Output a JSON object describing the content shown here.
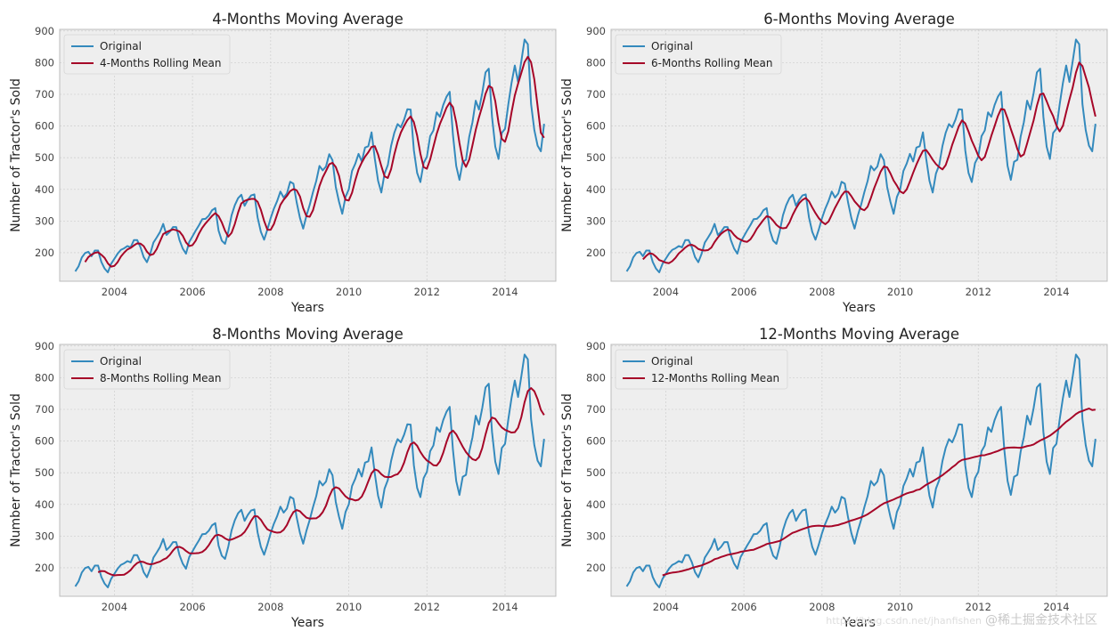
{
  "figure": {
    "background": "#ffffff",
    "axes_background": "#eeeeee",
    "grid_color": "#d2d2d2",
    "colors": {
      "original": "#348abd",
      "rolling": "#a60628"
    }
  },
  "watermark": {
    "url": "https://blog.csdn.net/jhanfishen",
    "text": "@稀土掘金技术社区"
  },
  "chart_data": [
    {
      "type": "line",
      "title": "4-Months Moving Average",
      "xlabel": "Years",
      "ylabel": "Number of Tractor's Sold",
      "xticks": [
        "2004",
        "2006",
        "2008",
        "2010",
        "2012",
        "2014"
      ],
      "yticks": [
        200,
        300,
        400,
        500,
        600,
        700,
        800,
        900
      ],
      "xlim": [
        2002.6,
        2015.3
      ],
      "ylim": [
        110,
        905
      ],
      "grid": true,
      "legend": "top-left",
      "window": 4,
      "series": [
        {
          "name": "Original",
          "role": "original"
        },
        {
          "name": "4-Months Rolling Mean",
          "role": "rolling"
        }
      ]
    },
    {
      "type": "line",
      "title": "6-Months Moving Average",
      "xlabel": "Years",
      "ylabel": "Number of Tractor's Sold",
      "xticks": [
        "2004",
        "2006",
        "2008",
        "2010",
        "2012",
        "2014"
      ],
      "yticks": [
        200,
        300,
        400,
        500,
        600,
        700,
        800,
        900
      ],
      "xlim": [
        2002.6,
        2015.3
      ],
      "ylim": [
        110,
        905
      ],
      "grid": true,
      "legend": "top-left",
      "window": 6,
      "series": [
        {
          "name": "Original",
          "role": "original"
        },
        {
          "name": "6-Months Rolling Mean",
          "role": "rolling"
        }
      ]
    },
    {
      "type": "line",
      "title": "8-Months Moving Average",
      "xlabel": "Years",
      "ylabel": "Number of Tractor's Sold",
      "xticks": [
        "2004",
        "2006",
        "2008",
        "2010",
        "2012",
        "2014"
      ],
      "yticks": [
        200,
        300,
        400,
        500,
        600,
        700,
        800,
        900
      ],
      "xlim": [
        2002.6,
        2015.3
      ],
      "ylim": [
        110,
        905
      ],
      "grid": true,
      "legend": "top-left",
      "window": 8,
      "series": [
        {
          "name": "Original",
          "role": "original"
        },
        {
          "name": "8-Months Rolling Mean",
          "role": "rolling"
        }
      ]
    },
    {
      "type": "line",
      "title": "12-Months Moving Average",
      "xlabel": "Years",
      "ylabel": "Number of Tractor's Sold",
      "xticks": [
        "2004",
        "2006",
        "2008",
        "2010",
        "2012",
        "2014"
      ],
      "yticks": [
        200,
        300,
        400,
        500,
        600,
        700,
        800,
        900
      ],
      "xlim": [
        2002.6,
        2015.3
      ],
      "ylim": [
        110,
        905
      ],
      "grid": true,
      "legend": "top-left",
      "window": 12,
      "series": [
        {
          "name": "Original",
          "role": "original"
        },
        {
          "name": "12-Months Rolling Mean",
          "role": "rolling"
        }
      ]
    }
  ],
  "original_series": {
    "start": "2003-01",
    "frequency": "monthly",
    "values": [
      141,
      157,
      185,
      199,
      203,
      189,
      207,
      207,
      171,
      150,
      138,
      165,
      181,
      197,
      209,
      214,
      221,
      217,
      240,
      240,
      218,
      186,
      170,
      196,
      232,
      248,
      265,
      291,
      256,
      266,
      281,
      281,
      240,
      213,
      197,
      234,
      252,
      270,
      287,
      306,
      307,
      317,
      334,
      341,
      270,
      238,
      228,
      267,
      318,
      350,
      372,
      383,
      348,
      367,
      381,
      384,
      311,
      266,
      241,
      273,
      309,
      339,
      363,
      393,
      374,
      387,
      424,
      418,
      359,
      310,
      276,
      317,
      351,
      391,
      426,
      474,
      460,
      472,
      511,
      492,
      408,
      361,
      323,
      376,
      400,
      458,
      481,
      512,
      488,
      532,
      536,
      580,
      497,
      427,
      390,
      450,
      477,
      537,
      579,
      606,
      596,
      620,
      653,
      652,
      523,
      452,
      423,
      483,
      503,
      568,
      586,
      643,
      629,
      666,
      692,
      708,
      572,
      474,
      430,
      487,
      493,
      566,
      612,
      680,
      652,
      704,
      769,
      781,
      629,
      535,
      496,
      578,
      591,
      668,
      736,
      791,
      739,
      804,
      873,
      858,
      669,
      587,
      538,
      520,
      607
    ]
  }
}
